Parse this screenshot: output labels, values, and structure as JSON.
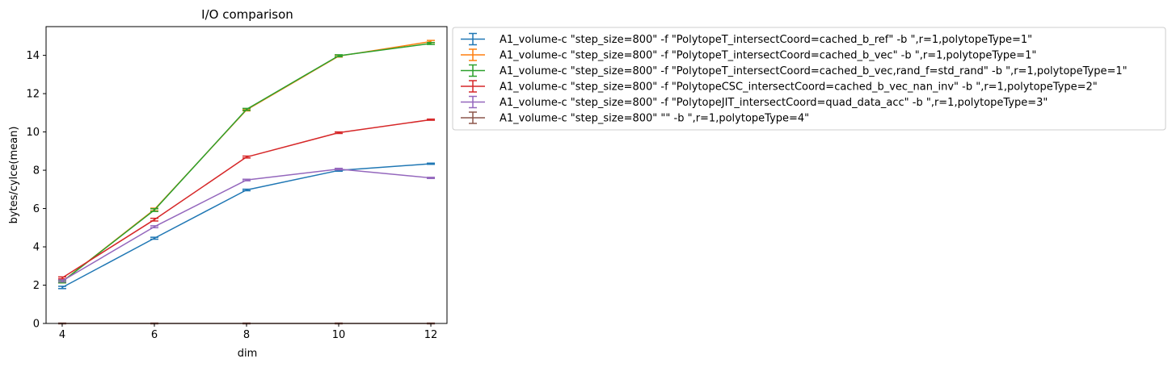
{
  "chart_data": {
    "type": "line",
    "title": "I/O comparison",
    "xlabel": "dim",
    "ylabel": "bytes/cylce(mean)",
    "x": [
      4,
      6,
      8,
      10,
      12
    ],
    "xlim": [
      3.65,
      12.35
    ],
    "ylim": [
      0,
      15.5
    ],
    "xticks": [
      4,
      6,
      8,
      10,
      12
    ],
    "yticks": [
      0,
      2,
      4,
      6,
      8,
      10,
      12,
      14
    ],
    "grid": false,
    "legend_position": "outside-upper-right",
    "error_bars": true,
    "series": [
      {
        "name": "A1_volume-c \"step_size=800\" -f \"PolytopeT_intersectCoord=cached_b_ref\" -b \",r=1,polytopeType=1\"",
        "color": "#1f77b4",
        "values": [
          1.88,
          4.45,
          6.97,
          7.99,
          8.34
        ],
        "errors": [
          0.06,
          0.05,
          0.04,
          0.04,
          0.03
        ]
      },
      {
        "name": "A1_volume-c \"step_size=800\" -f \"PolytopeT_intersectCoord=cached_b_vec\" -b \",r=1,polytopeType=1\"",
        "color": "#ff7f0e",
        "values": [
          2.18,
          5.95,
          11.15,
          13.96,
          14.72
        ],
        "errors": [
          0.06,
          0.07,
          0.05,
          0.05,
          0.06
        ]
      },
      {
        "name": "A1_volume-c \"step_size=800\" -f \"PolytopeT_intersectCoord=cached_b_vec,rand_f=std_rand\" -b \",r=1,polytopeType=1\"",
        "color": "#2ca02c",
        "values": [
          2.18,
          5.92,
          11.18,
          13.98,
          14.62
        ],
        "errors": [
          0.06,
          0.07,
          0.05,
          0.05,
          0.05
        ]
      },
      {
        "name": "A1_volume-c \"step_size=800\" -f \"PolytopeCSC_intersectCoord=cached_b_vec_nan_inv\" -b \",r=1,polytopeType=2\"",
        "color": "#d62728",
        "values": [
          2.38,
          5.42,
          8.69,
          9.96,
          10.64
        ],
        "errors": [
          0.05,
          0.07,
          0.05,
          0.04,
          0.03
        ]
      },
      {
        "name": "A1_volume-c \"step_size=800\" -f \"PolytopeJIT_intersectCoord=quad_data_acc\" -b \",r=1,polytopeType=3\"",
        "color": "#9467bd",
        "values": [
          2.22,
          5.05,
          7.49,
          8.06,
          7.6
        ],
        "errors": [
          0.05,
          0.05,
          0.04,
          0.04,
          0.03
        ]
      },
      {
        "name": "A1_volume-c \"step_size=800\"  \"\" -b \",r=1,polytopeType=4\"",
        "color": "#8c564b",
        "values": [
          0.0,
          0.0,
          0.0,
          0.0,
          0.0
        ],
        "errors": [
          0.02,
          0.02,
          0.02,
          0.02,
          0.02
        ]
      }
    ]
  }
}
